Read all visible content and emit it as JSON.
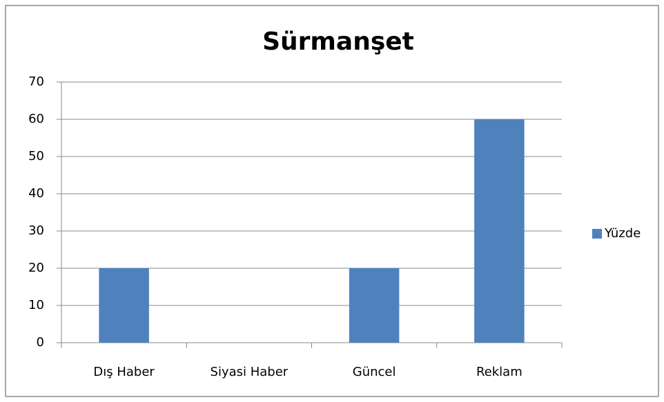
{
  "chart_data": {
    "type": "bar",
    "title": "Sürmanşet",
    "categories": [
      "Dış Haber",
      "Siyasi Haber",
      "Güncel",
      "Reklam"
    ],
    "series": [
      {
        "name": "Yüzde",
        "color": "#4f81bd",
        "values": [
          20,
          0,
          20,
          60
        ]
      }
    ],
    "ylim": [
      0,
      70
    ],
    "yticks": [
      0,
      10,
      20,
      30,
      40,
      50,
      60,
      70
    ],
    "grid": true,
    "legend": "right"
  }
}
